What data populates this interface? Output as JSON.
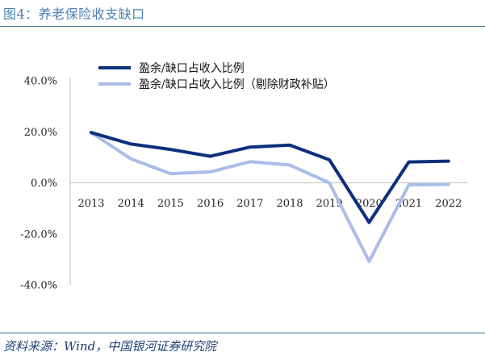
{
  "figure": {
    "title": "图4：养老保险收支缺口",
    "source": "资料来源：Wind，中国银河证券研究院"
  },
  "colors": {
    "series1": "#0d2f7c",
    "series2": "#a9bde8",
    "title": "#4b7fb2",
    "rule": "#2f5f90",
    "axis": "#bfbfbf"
  },
  "chart_data": {
    "type": "line",
    "title": "",
    "xlabel": "",
    "ylabel": "",
    "categories": [
      "2013",
      "2014",
      "2015",
      "2016",
      "2017",
      "2018",
      "2019",
      "2020",
      "2021",
      "2022"
    ],
    "ylim": [
      -40,
      40
    ],
    "yticks": [
      40,
      20,
      0,
      -20,
      -40
    ],
    "ytick_labels": [
      "40.0%",
      "20.0%",
      "0.0%",
      "-20.0%",
      "-40.0%"
    ],
    "grid": false,
    "legend_position": "top",
    "series": [
      {
        "name": "盈余/缺口占收入比例",
        "values": [
          19.7,
          15.2,
          13.1,
          10.4,
          14.0,
          14.8,
          9.0,
          -15.5,
          8.2,
          8.5
        ]
      },
      {
        "name": "盈余/缺口占收入比例（剔除财政补贴）",
        "values": [
          19.7,
          9.4,
          3.6,
          4.3,
          8.3,
          7.0,
          0.0,
          -30.8,
          -0.8,
          -0.6
        ]
      }
    ]
  }
}
